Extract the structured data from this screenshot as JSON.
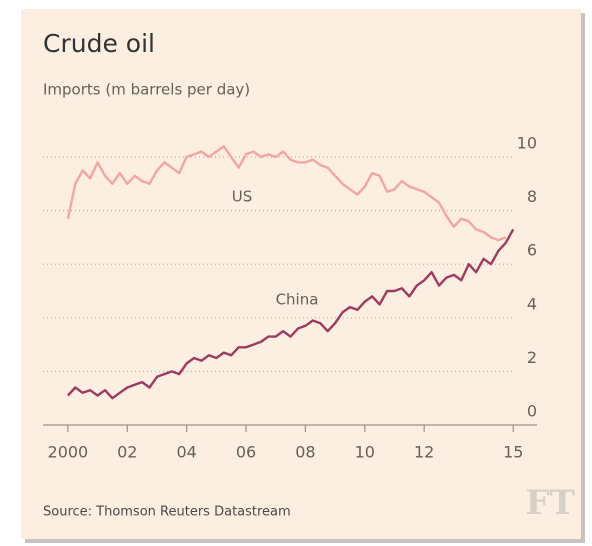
{
  "chart_data": {
    "type": "line",
    "title": "Crude oil",
    "subtitle": "Imports (m barrels per day)",
    "source": "Source: Thomson Reuters Datastream",
    "logo": "FT",
    "x": [
      2000,
      2000.25,
      2000.5,
      2000.75,
      2001,
      2001.25,
      2001.5,
      2001.75,
      2002,
      2002.25,
      2002.5,
      2002.75,
      2003,
      2003.25,
      2003.5,
      2003.75,
      2004,
      2004.25,
      2004.5,
      2004.75,
      2005,
      2005.25,
      2005.5,
      2005.75,
      2006,
      2006.25,
      2006.5,
      2006.75,
      2007,
      2007.25,
      2007.5,
      2007.75,
      2008,
      2008.25,
      2008.5,
      2008.75,
      2009,
      2009.25,
      2009.5,
      2009.75,
      2010,
      2010.25,
      2010.5,
      2010.75,
      2011,
      2011.25,
      2011.5,
      2011.75,
      2012,
      2012.25,
      2012.5,
      2012.75,
      2013,
      2013.25,
      2013.5,
      2013.75,
      2014,
      2014.25,
      2014.5,
      2014.75,
      2015
    ],
    "series": [
      {
        "name": "US",
        "color": "#f2a5a3",
        "values": [
          7.7,
          9.0,
          9.5,
          9.2,
          9.8,
          9.3,
          9.0,
          9.4,
          9.0,
          9.3,
          9.1,
          9.0,
          9.5,
          9.8,
          9.6,
          9.4,
          10.0,
          10.1,
          10.2,
          10.0,
          10.2,
          10.4,
          10.0,
          9.6,
          10.1,
          10.2,
          10.0,
          10.1,
          10.0,
          10.2,
          9.9,
          9.8,
          9.8,
          9.9,
          9.7,
          9.6,
          9.3,
          9.0,
          8.8,
          8.6,
          8.9,
          9.4,
          9.3,
          8.7,
          8.8,
          9.1,
          8.9,
          8.8,
          8.7,
          8.5,
          8.3,
          7.8,
          7.4,
          7.7,
          7.6,
          7.3,
          7.2,
          7.0,
          6.9,
          7.0,
          null
        ]
      },
      {
        "name": "China",
        "color": "#9b3b5f",
        "values": [
          1.1,
          1.4,
          1.2,
          1.3,
          1.1,
          1.3,
          1.0,
          1.2,
          1.4,
          1.5,
          1.6,
          1.4,
          1.8,
          1.9,
          2.0,
          1.9,
          2.3,
          2.5,
          2.4,
          2.6,
          2.5,
          2.7,
          2.6,
          2.9,
          2.9,
          3.0,
          3.1,
          3.3,
          3.3,
          3.5,
          3.3,
          3.6,
          3.7,
          3.9,
          3.8,
          3.5,
          3.8,
          4.2,
          4.4,
          4.3,
          4.6,
          4.8,
          4.5,
          5.0,
          5.0,
          5.1,
          4.8,
          5.2,
          5.4,
          5.7,
          5.2,
          5.5,
          5.6,
          5.4,
          6.0,
          5.7,
          6.2,
          6.0,
          6.5,
          6.8,
          7.3
        ]
      }
    ],
    "annotations": [
      "US",
      "China"
    ],
    "xlim": [
      1999.6,
      2015.8
    ],
    "xticks": [
      2000,
      {
        "value": 2002,
        "label": "02"
      },
      {
        "value": 2004,
        "label": "04"
      },
      {
        "value": 2006,
        "label": "06"
      },
      {
        "value": 2008,
        "label": "08"
      },
      {
        "value": 2010,
        "label": "10"
      },
      {
        "value": 2012,
        "label": "12"
      },
      {
        "value": 2015,
        "label": "15"
      }
    ],
    "ylim": [
      0,
      10.5
    ],
    "yticks": [
      0,
      2,
      4,
      6,
      8,
      10
    ],
    "grid": true
  }
}
